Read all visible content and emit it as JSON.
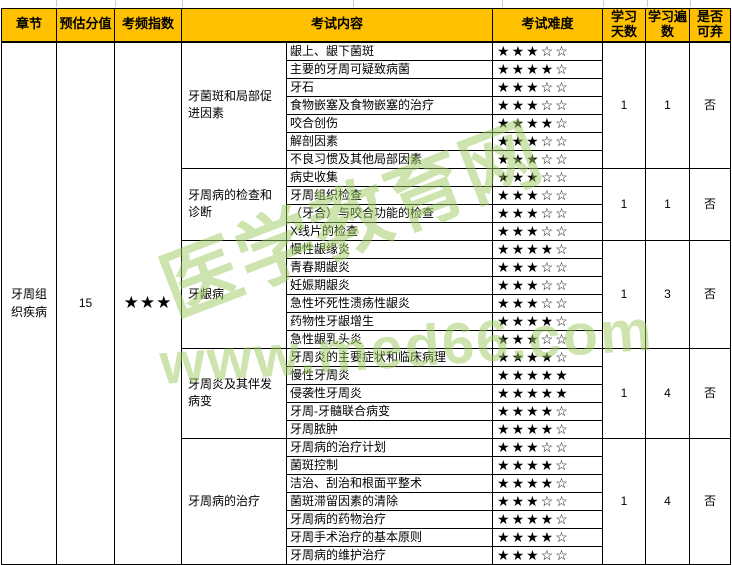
{
  "colors": {
    "header_bg": "#FFC000",
    "border": "#000000",
    "watermark": "#9CCB5F",
    "grid_tick": "#CCCCCC"
  },
  "star_glyphs": {
    "filled": "★",
    "hollow": "☆"
  },
  "difficulty_scale_max": 5,
  "header": {
    "columns": [
      "章节",
      "预估分值",
      "考频指数",
      "考试内容",
      "考试难度",
      "学习天数",
      "学习遍数",
      "是否可弃"
    ]
  },
  "chapter": {
    "name": "牙周组织疾病",
    "estimated_score": "15",
    "frequency_stars": 3
  },
  "watermark": {
    "line1": "医学教育网",
    "line2": "www.med66.com"
  },
  "groups": [
    {
      "category": "牙菌斑和局部促进因素",
      "study_days": "1",
      "study_times": "1",
      "discardable": "否",
      "items": [
        {
          "label": "龈上、龈下菌斑",
          "difficulty": 3
        },
        {
          "label": "主要的牙周可疑致病菌",
          "difficulty": 4
        },
        {
          "label": "牙石",
          "difficulty": 3
        },
        {
          "label": "食物嵌塞及食物嵌塞的治疗",
          "difficulty": 3
        },
        {
          "label": "咬合创伤",
          "difficulty": 4
        },
        {
          "label": "解剖因素",
          "difficulty": 3
        },
        {
          "label": "不良习惯及其他局部因素",
          "difficulty": 3
        }
      ]
    },
    {
      "category": "牙周病的检查和诊断",
      "study_days": "1",
      "study_times": "1",
      "discardable": "否",
      "items": [
        {
          "label": "病史收集",
          "difficulty": 3
        },
        {
          "label": "牙周组织检查",
          "difficulty": 3
        },
        {
          "label": "（牙合）与咬合功能的检查",
          "difficulty": 3
        },
        {
          "label": "X线片的检查",
          "difficulty": 3
        }
      ]
    },
    {
      "category": "牙龈病",
      "study_days": "1",
      "study_times": "3",
      "discardable": "否",
      "items": [
        {
          "label": "慢性龈缘炎",
          "difficulty": 4
        },
        {
          "label": "青春期龈炎",
          "difficulty": 3
        },
        {
          "label": "妊娠期龈炎",
          "difficulty": 3
        },
        {
          "label": "急性坏死性溃疡性龈炎",
          "difficulty": 3
        },
        {
          "label": "药物性牙龈增生",
          "difficulty": 4
        },
        {
          "label": "急性龈乳头炎",
          "difficulty": 3
        }
      ]
    },
    {
      "category": "牙周炎及其伴发病变",
      "study_days": "1",
      "study_times": "4",
      "discardable": "否",
      "items": [
        {
          "label": "牙周炎的主要症状和临床病理",
          "difficulty": 4
        },
        {
          "label": "慢性牙周炎",
          "difficulty": 5
        },
        {
          "label": "侵袭性牙周炎",
          "difficulty": 5
        },
        {
          "label": "牙周-牙髓联合病变",
          "difficulty": 4
        },
        {
          "label": "牙周脓肿",
          "difficulty": 4
        }
      ]
    },
    {
      "category": "牙周病的治疗",
      "study_days": "1",
      "study_times": "4",
      "discardable": "否",
      "items": [
        {
          "label": "牙周病的治疗计划",
          "difficulty": 3
        },
        {
          "label": "菌斑控制",
          "difficulty": 4
        },
        {
          "label": "洁治、刮治和根面平整术",
          "difficulty": 4
        },
        {
          "label": "菌斑滞留因素的清除",
          "difficulty": 3
        },
        {
          "label": "牙周病的药物治疗",
          "difficulty": 4
        },
        {
          "label": "牙周手术治疗的基本原则",
          "difficulty": 4
        },
        {
          "label": "牙周病的维护治疗",
          "difficulty": 3
        }
      ]
    }
  ]
}
